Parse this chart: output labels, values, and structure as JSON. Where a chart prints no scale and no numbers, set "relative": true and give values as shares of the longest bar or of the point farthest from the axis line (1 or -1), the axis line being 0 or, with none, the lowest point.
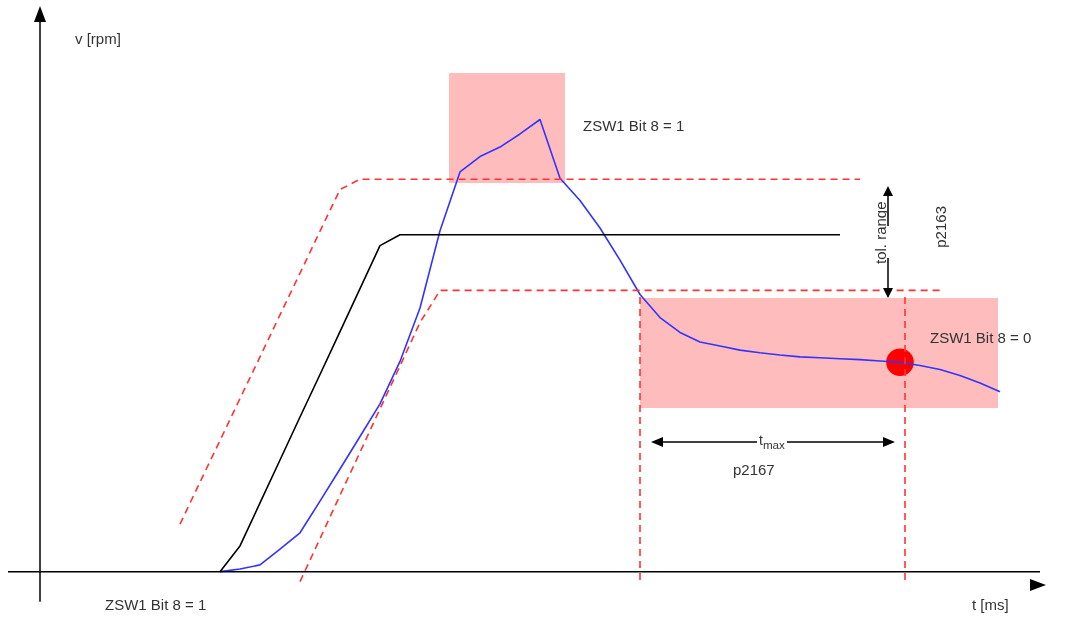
{
  "chart_data": {
    "type": "line",
    "relative": true,
    "xlabel": "t [ms]",
    "ylabel": "v [rpm]",
    "legend": false,
    "marker": "none",
    "categories": [
      null,
      null,
      null,
      null,
      null,
      null,
      null,
      null,
      null,
      null,
      null,
      null,
      null,
      null,
      null,
      null,
      null,
      null,
      null,
      null,
      null,
      null,
      null,
      null,
      null,
      null,
      null,
      null,
      null,
      null,
      null,
      null,
      null,
      null,
      null,
      null,
      null,
      null,
      null,
      null,
      null,
      null,
      null,
      null,
      null,
      null,
      null,
      null,
      null,
      null,
      null
    ],
    "series": [
      {
        "color": "#000000",
        "line_style": "solid",
        "values": [
          null,
          null,
          null,
          null,
          null,
          null,
          null,
          null,
          null,
          0,
          0.057,
          0.152,
          0.247,
          0.342,
          0.436,
          0.531,
          0.626,
          0.721,
          0.745,
          0.745,
          0.745,
          0.745,
          0.745,
          0.745,
          0.745,
          0.745,
          0.745,
          0.745,
          0.745,
          0.745,
          0.745,
          0.745,
          0.745,
          0.745,
          0.745,
          0.745,
          0.745,
          0.745,
          0.745,
          0.745,
          0.745,
          null,
          null,
          null,
          null,
          null,
          null,
          null,
          null,
          null,
          null
        ]
      },
      {
        "color": "#ff3333",
        "line_style": "dashed",
        "values": [
          null,
          null,
          null,
          null,
          null,
          null,
          null,
          0.105,
          0.198,
          0.29,
          0.383,
          0.475,
          0.568,
          0.66,
          0.753,
          0.845,
          0.868,
          0.868,
          0.868,
          0.868,
          0.868,
          0.868,
          0.868,
          0.868,
          0.868,
          0.868,
          0.868,
          0.868,
          0.868,
          0.868,
          0.868,
          0.868,
          0.868,
          0.868,
          0.868,
          0.868,
          0.868,
          0.868,
          0.868,
          0.868,
          0.868,
          0.868,
          null,
          null,
          null,
          null,
          null,
          null,
          null,
          null,
          null
        ]
      },
      {
        "color": "#ff3333",
        "line_style": "dashed",
        "values": [
          null,
          null,
          null,
          null,
          null,
          null,
          null,
          null,
          null,
          null,
          null,
          null,
          null,
          -0.022,
          0.073,
          0.169,
          0.264,
          0.36,
          0.455,
          0.551,
          0.622,
          0.622,
          0.622,
          0.622,
          0.622,
          0.622,
          0.622,
          0.622,
          0.622,
          0.622,
          0.622,
          0.622,
          0.622,
          0.622,
          0.622,
          0.622,
          0.622,
          0.622,
          0.622,
          0.622,
          0.622,
          0.622,
          0.622,
          0.622,
          0.622,
          0.622,
          null,
          null,
          null,
          null,
          null
        ]
      },
      {
        "color": "#3333ff",
        "line_style": "solid",
        "values": [
          null,
          null,
          null,
          null,
          null,
          null,
          null,
          null,
          null,
          0,
          0.006,
          0.015,
          0.05,
          0.086,
          0.156,
          0.227,
          0.299,
          0.371,
          0.465,
          0.583,
          0.754,
          0.884,
          0.918,
          0.939,
          0.968,
          1,
          0.87,
          0.821,
          0.76,
          0.689,
          0.613,
          0.562,
          0.529,
          0.508,
          0.499,
          0.49,
          0.484,
          0.479,
          0.475,
          0.473,
          0.471,
          0.469,
          0.466,
          0.463,
          0.456,
          0.447,
          0.434,
          0.417,
          0.398,
          null,
          null
        ]
      },
      {
        "color": "#ff0000",
        "marker": "circle",
        "values": [
          null,
          null,
          null,
          null,
          null,
          null,
          null,
          null,
          null,
          null,
          null,
          null,
          null,
          null,
          null,
          null,
          null,
          null,
          null,
          null,
          null,
          null,
          null,
          null,
          null,
          null,
          null,
          null,
          null,
          null,
          null,
          null,
          null,
          null,
          null,
          null,
          null,
          null,
          null,
          null,
          null,
          null,
          null,
          0.463,
          null,
          null,
          null,
          null,
          null,
          null,
          null
        ]
      }
    ],
    "annotations": [
      "ZSW1 Bit 8 = 1",
      "ZSW1 Bit 8 = 0",
      "tol. range",
      "p2163",
      "t$_{max}$",
      "p2167",
      "ZSW1 Bit 8 = 1"
    ]
  }
}
